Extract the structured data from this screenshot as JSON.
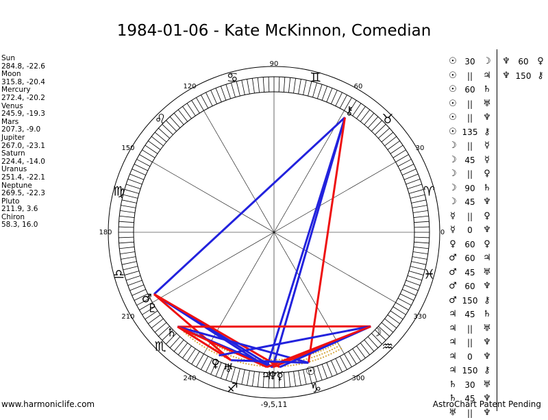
{
  "title": "1984-01-06 - Kate McKinnon, Comedian",
  "planets": [
    {
      "name": "Sun",
      "coords": "284.8, -22.6"
    },
    {
      "name": "Moon",
      "coords": "315.8, -20.4"
    },
    {
      "name": "Mercury",
      "coords": "272.4, -20.2"
    },
    {
      "name": "Venus",
      "coords": "245.9, -19.3"
    },
    {
      "name": "Mars",
      "coords": "207.3, -9.0"
    },
    {
      "name": "Jupiter",
      "coords": "267.0, -23.1"
    },
    {
      "name": "Saturn",
      "coords": "224.4, -14.0"
    },
    {
      "name": "Uranus",
      "coords": "251.4, -22.1"
    },
    {
      "name": "Neptune",
      "coords": "269.5, -22.3"
    },
    {
      "name": "Pluto",
      "coords": "211.9, 3.6"
    },
    {
      "name": "Chiron",
      "coords": "58.3, 16.0"
    }
  ],
  "degree_labels": [
    "0",
    "30",
    "60",
    "90",
    "120",
    "150",
    "180",
    "210",
    "240",
    "300",
    "330"
  ],
  "bottom_label": "-9,5,11",
  "zodiac_signs": [
    {
      "glyph": "♈",
      "lon": 15
    },
    {
      "glyph": "♉",
      "lon": 45
    },
    {
      "glyph": "♊",
      "lon": 75
    },
    {
      "glyph": "♋",
      "lon": 105
    },
    {
      "glyph": "♌",
      "lon": 135
    },
    {
      "glyph": "♍",
      "lon": 165
    },
    {
      "glyph": "♎",
      "lon": 195
    },
    {
      "glyph": "♏",
      "lon": 225
    },
    {
      "glyph": "♐",
      "lon": 255
    },
    {
      "glyph": "♑",
      "lon": 285
    },
    {
      "glyph": "♒",
      "lon": 315
    },
    {
      "glyph": "♓",
      "lon": 345
    }
  ],
  "planet_markers": [
    {
      "glyph": "⚷",
      "lon": 58.3
    },
    {
      "glyph": "☉",
      "lon": 284.8
    },
    {
      "glyph": "☽",
      "lon": 315.8
    },
    {
      "glyph": "♂",
      "lon": 207.3
    },
    {
      "glyph": "♇",
      "lon": 211.9
    },
    {
      "glyph": "♄",
      "lon": 224.4
    },
    {
      "glyph": "♀",
      "lon": 245.9
    },
    {
      "glyph": "♅",
      "lon": 251.4
    },
    {
      "glyph": "♃",
      "lon": 267.0
    },
    {
      "glyph": "♆",
      "lon": 269.5
    },
    {
      "glyph": "☿",
      "lon": 272.4
    }
  ],
  "aspect_lines": [
    {
      "a": 58.3,
      "b": 207.3,
      "color": "#2222dd"
    },
    {
      "a": 58.3,
      "b": 267.0,
      "color": "#2222dd"
    },
    {
      "a": 58.3,
      "b": 269.5,
      "color": "#2222dd"
    },
    {
      "a": 58.3,
      "b": 284.8,
      "color": "#ee1111"
    },
    {
      "a": 207.3,
      "b": 267.0,
      "color": "#2222dd"
    },
    {
      "a": 207.3,
      "b": 269.5,
      "color": "#2222dd"
    },
    {
      "a": 207.3,
      "b": 251.4,
      "color": "#ee1111"
    },
    {
      "a": 207.3,
      "b": 272.4,
      "color": "#ee1111"
    },
    {
      "a": 224.4,
      "b": 315.8,
      "color": "#ee1111"
    },
    {
      "a": 224.4,
      "b": 284.8,
      "color": "#2222dd"
    },
    {
      "a": 224.4,
      "b": 269.5,
      "color": "#2222dd"
    },
    {
      "a": 224.4,
      "b": 251.4,
      "color": "#ee1111"
    },
    {
      "a": 224.4,
      "b": 267.0,
      "color": "#ee1111"
    },
    {
      "a": 245.9,
      "b": 315.8,
      "color": "#2222dd"
    },
    {
      "a": 315.8,
      "b": 269.5,
      "color": "#ee1111"
    },
    {
      "a": 315.8,
      "b": 272.4,
      "color": "#2222dd"
    },
    {
      "a": 315.8,
      "b": 267.0,
      "color": "#ee1111"
    },
    {
      "a": 284.8,
      "b": 251.4,
      "color": "#2222dd"
    }
  ],
  "aspects_col1": [
    {
      "p1": "☉",
      "angle": "30",
      "p2": "☽"
    },
    {
      "p1": "☉",
      "angle": "||",
      "p2": "♃"
    },
    {
      "p1": "☉",
      "angle": "60",
      "p2": "♄"
    },
    {
      "p1": "☉",
      "angle": "||",
      "p2": "♅"
    },
    {
      "p1": "☉",
      "angle": "||",
      "p2": "♆"
    },
    {
      "p1": "☉",
      "angle": "135",
      "p2": "⚷"
    },
    {
      "p1": "☽",
      "angle": "||",
      "p2": "☿"
    },
    {
      "p1": "☽",
      "angle": "45",
      "p2": "☿"
    },
    {
      "p1": "☽",
      "angle": "||",
      "p2": "♀"
    },
    {
      "p1": "☽",
      "angle": "90",
      "p2": "♄"
    },
    {
      "p1": "☽",
      "angle": "45",
      "p2": "♆"
    },
    {
      "p1": "☿",
      "angle": "||",
      "p2": "♀"
    },
    {
      "p1": "☿",
      "angle": "0",
      "p2": "♆"
    },
    {
      "p1": "♀",
      "angle": "60",
      "p2": "♀"
    },
    {
      "p1": "♂",
      "angle": "60",
      "p2": "♃"
    },
    {
      "p1": "♂",
      "angle": "45",
      "p2": "♅"
    },
    {
      "p1": "♂",
      "angle": "60",
      "p2": "♆"
    },
    {
      "p1": "♂",
      "angle": "150",
      "p2": "⚷"
    },
    {
      "p1": "♃",
      "angle": "45",
      "p2": "♄"
    },
    {
      "p1": "♃",
      "angle": "||",
      "p2": "♅"
    },
    {
      "p1": "♃",
      "angle": "||",
      "p2": "♆"
    },
    {
      "p1": "♃",
      "angle": "0",
      "p2": "♆"
    },
    {
      "p1": "♃",
      "angle": "150",
      "p2": "⚷"
    },
    {
      "p1": "♄",
      "angle": "30",
      "p2": "♅"
    },
    {
      "p1": "♄",
      "angle": "45",
      "p2": "♆"
    },
    {
      "p1": "♅",
      "angle": "||",
      "p2": "♆"
    }
  ],
  "aspects_col2": [
    {
      "p1": "♆",
      "angle": "60",
      "p2": "♀"
    },
    {
      "p1": "♆",
      "angle": "150",
      "p2": "⚷"
    }
  ],
  "footer_left": "www.harmoniclife.com",
  "footer_right": "AstroChart Patent Pending"
}
